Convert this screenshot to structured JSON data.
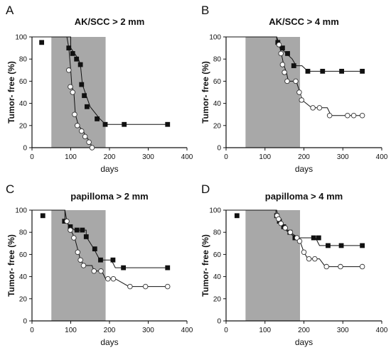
{
  "chart_data": [
    {
      "type": "line",
      "panel": "A",
      "title": "AK/SCC > 2 mm",
      "xlabel": "days",
      "ylabel": "Tumor- free (%)",
      "xlim": [
        0,
        400
      ],
      "ylim": [
        0,
        100
      ],
      "xticks": [
        0,
        100,
        200,
        300,
        400
      ],
      "yticks": [
        0,
        20,
        40,
        60,
        80,
        100
      ],
      "shaded_range": [
        50,
        190
      ],
      "series": [
        {
          "marker": "filled-square",
          "steps": [
            [
              0,
              100
            ],
            [
              40,
              100
            ],
            [
              100,
              100
            ],
            [
              100,
              90
            ],
            [
              110,
              85
            ],
            [
              120,
              80
            ],
            [
              125,
              75
            ],
            [
              130,
              57
            ],
            [
              140,
              47
            ],
            [
              150,
              37
            ],
            [
              175,
              26
            ],
            [
              190,
              21
            ],
            [
              350,
              21
            ]
          ],
          "markers": [
            [
              25,
              95
            ],
            [
              95,
              90
            ],
            [
              105,
              85
            ],
            [
              115,
              80
            ],
            [
              125,
              75
            ],
            [
              128,
              57
            ],
            [
              135,
              47
            ],
            [
              142,
              37
            ],
            [
              168,
              26
            ],
            [
              189,
              21
            ],
            [
              238,
              21
            ],
            [
              350,
              21
            ]
          ]
        },
        {
          "marker": "open-circle",
          "steps": [
            [
              0,
              100
            ],
            [
              40,
              100
            ],
            [
              90,
              100
            ],
            [
              95,
              90
            ],
            [
              100,
              70
            ],
            [
              103,
              55
            ],
            [
              108,
              50
            ],
            [
              112,
              30
            ],
            [
              120,
              20
            ],
            [
              132,
              15
            ],
            [
              140,
              10
            ],
            [
              150,
              5
            ],
            [
              155,
              0
            ]
          ],
          "markers": [
            [
              95,
              70
            ],
            [
              99,
              55
            ],
            [
              105,
              50
            ],
            [
              110,
              30
            ],
            [
              117,
              20
            ],
            [
              128,
              15
            ],
            [
              137,
              10
            ],
            [
              147,
              5
            ],
            [
              155,
              0
            ]
          ]
        }
      ]
    },
    {
      "type": "line",
      "panel": "B",
      "title": "AK/SCC > 4 mm",
      "xlabel": "days",
      "ylabel": "Tumor- free (%)",
      "xlim": [
        0,
        400
      ],
      "ylim": [
        0,
        100
      ],
      "xticks": [
        0,
        100,
        200,
        300,
        400
      ],
      "yticks": [
        0,
        20,
        40,
        60,
        80,
        100
      ],
      "shaded_range": [
        50,
        190
      ],
      "series": [
        {
          "marker": "filled-square",
          "steps": [
            [
              0,
              100
            ],
            [
              130,
              100
            ],
            [
              130,
              95
            ],
            [
              140,
              90
            ],
            [
              155,
              85
            ],
            [
              170,
              80
            ],
            [
              180,
              74
            ],
            [
              195,
              74
            ],
            [
              210,
              69
            ],
            [
              350,
              69
            ]
          ],
          "markers": [
            [
              133,
              95
            ],
            [
              145,
              90
            ],
            [
              158,
              85
            ],
            [
              174,
              74
            ],
            [
              210,
              69
            ],
            [
              248,
              69
            ],
            [
              297,
              69
            ],
            [
              350,
              69
            ]
          ]
        },
        {
          "marker": "open-circle",
          "steps": [
            [
              0,
              100
            ],
            [
              130,
              100
            ],
            [
              135,
              95
            ],
            [
              142,
              85
            ],
            [
              148,
              75
            ],
            [
              155,
              68
            ],
            [
              160,
              60
            ],
            [
              180,
              60
            ],
            [
              190,
              50
            ],
            [
              195,
              43
            ],
            [
              220,
              36
            ],
            [
              260,
              36
            ],
            [
              270,
              29
            ],
            [
              350,
              29
            ]
          ],
          "markers": [
            [
              136,
              93
            ],
            [
              141,
              85
            ],
            [
              145,
              75
            ],
            [
              150,
              68
            ],
            [
              157,
              60
            ],
            [
              179,
              60
            ],
            [
              188,
              50
            ],
            [
              194,
              43
            ],
            [
              223,
              36
            ],
            [
              240,
              36
            ],
            [
              266,
              29
            ],
            [
              312,
              29
            ],
            [
              328,
              29
            ],
            [
              350,
              29
            ]
          ]
        }
      ]
    },
    {
      "type": "line",
      "panel": "C",
      "title": "papilloma > 2 mm",
      "xlabel": "days",
      "ylabel": "Tumor- free (%)",
      "xlim": [
        0,
        400
      ],
      "ylim": [
        0,
        100
      ],
      "xticks": [
        0,
        100,
        200,
        300,
        400
      ],
      "yticks": [
        0,
        20,
        40,
        60,
        80,
        100
      ],
      "shaded_range": [
        50,
        190
      ],
      "series": [
        {
          "marker": "filled-square",
          "steps": [
            [
              0,
              100
            ],
            [
              85,
              100
            ],
            [
              85,
              90
            ],
            [
              100,
              85
            ],
            [
              110,
              82
            ],
            [
              140,
              82
            ],
            [
              140,
              76
            ],
            [
              160,
              65
            ],
            [
              175,
              55
            ],
            [
              205,
              55
            ],
            [
              215,
              48
            ],
            [
              350,
              48
            ]
          ],
          "markers": [
            [
              28,
              95
            ],
            [
              84,
              90
            ],
            [
              99,
              85
            ],
            [
              116,
              82
            ],
            [
              130,
              82
            ],
            [
              140,
              76
            ],
            [
              162,
              65
            ],
            [
              177,
              55
            ],
            [
              209,
              55
            ],
            [
              236,
              48
            ],
            [
              350,
              48
            ]
          ]
        },
        {
          "marker": "open-circle",
          "steps": [
            [
              0,
              100
            ],
            [
              85,
              100
            ],
            [
              90,
              90
            ],
            [
              100,
              82
            ],
            [
              110,
              75
            ],
            [
              120,
              62
            ],
            [
              125,
              55
            ],
            [
              135,
              50
            ],
            [
              155,
              50
            ],
            [
              160,
              45
            ],
            [
              180,
              45
            ],
            [
              190,
              38
            ],
            [
              215,
              38
            ],
            [
              250,
              31
            ],
            [
              350,
              31
            ]
          ],
          "markers": [
            [
              90,
              90
            ],
            [
              99,
              82
            ],
            [
              108,
              75
            ],
            [
              118,
              62
            ],
            [
              125,
              55
            ],
            [
              133,
              50
            ],
            [
              160,
              45
            ],
            [
              178,
              45
            ],
            [
              196,
              38
            ],
            [
              210,
              38
            ],
            [
              253,
              31
            ],
            [
              293,
              31
            ],
            [
              350,
              31
            ]
          ]
        }
      ]
    },
    {
      "type": "line",
      "panel": "D",
      "title": "papilloma > 4 mm",
      "xlabel": "days",
      "ylabel": "Tumor- free (%)",
      "xlim": [
        0,
        400
      ],
      "ylim": [
        0,
        100
      ],
      "xticks": [
        0,
        100,
        200,
        300,
        400
      ],
      "yticks": [
        0,
        20,
        40,
        60,
        80,
        100
      ],
      "shaded_range": [
        50,
        190
      ],
      "series": [
        {
          "marker": "filled-square",
          "steps": [
            [
              0,
              100
            ],
            [
              128,
              100
            ],
            [
              128,
              95
            ],
            [
              135,
              90
            ],
            [
              145,
              85
            ],
            [
              160,
              80
            ],
            [
              180,
              75
            ],
            [
              230,
              75
            ],
            [
              240,
              68
            ],
            [
              350,
              68
            ]
          ],
          "markers": [
            [
              28,
              95
            ],
            [
              130,
              95
            ],
            [
              137,
              90
            ],
            [
              148,
              85
            ],
            [
              164,
              80
            ],
            [
              177,
              75
            ],
            [
              225,
              75
            ],
            [
              238,
              75
            ],
            [
              262,
              68
            ],
            [
              296,
              68
            ],
            [
              350,
              68
            ]
          ]
        },
        {
          "marker": "open-circle",
          "steps": [
            [
              0,
              100
            ],
            [
              130,
              100
            ],
            [
              135,
              92
            ],
            [
              140,
              88
            ],
            [
              150,
              84
            ],
            [
              165,
              80
            ],
            [
              185,
              75
            ],
            [
              190,
              72
            ],
            [
              200,
              62
            ],
            [
              210,
              56
            ],
            [
              240,
              56
            ],
            [
              255,
              49
            ],
            [
              350,
              49
            ]
          ],
          "markers": [
            [
              131,
              95
            ],
            [
              135,
              92
            ],
            [
              141,
              88
            ],
            [
              152,
              84
            ],
            [
              165,
              80
            ],
            [
              182,
              75
            ],
            [
              189,
              72
            ],
            [
              200,
              62
            ],
            [
              213,
              56
            ],
            [
              228,
              56
            ],
            [
              258,
              49
            ],
            [
              294,
              49
            ],
            [
              350,
              49
            ]
          ]
        }
      ]
    }
  ]
}
